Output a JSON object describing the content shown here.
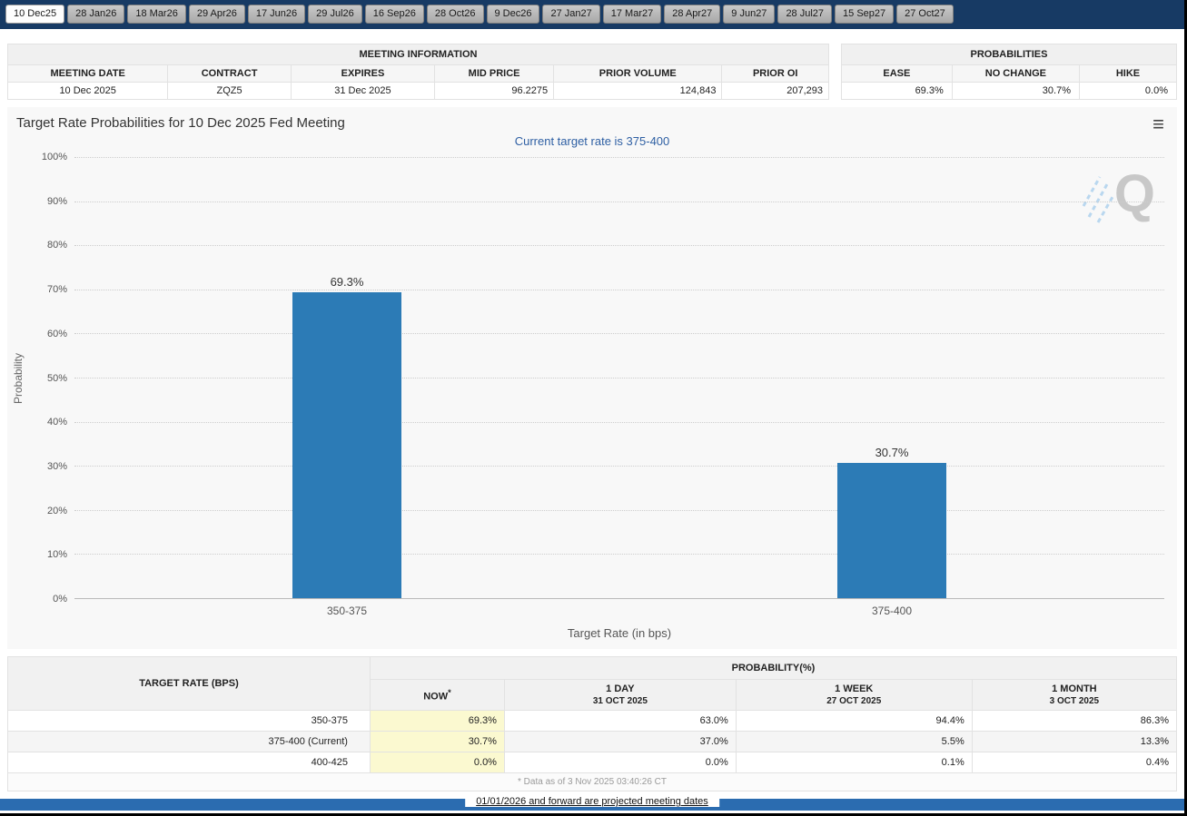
{
  "tabs": [
    {
      "label": "10 Dec25",
      "selected": true
    },
    {
      "label": "28 Jan26",
      "selected": false
    },
    {
      "label": "18 Mar26",
      "selected": false
    },
    {
      "label": "29 Apr26",
      "selected": false
    },
    {
      "label": "17 Jun26",
      "selected": false
    },
    {
      "label": "29 Jul26",
      "selected": false
    },
    {
      "label": "16 Sep26",
      "selected": false
    },
    {
      "label": "28 Oct26",
      "selected": false
    },
    {
      "label": "9 Dec26",
      "selected": false
    },
    {
      "label": "27 Jan27",
      "selected": false
    },
    {
      "label": "17 Mar27",
      "selected": false
    },
    {
      "label": "28 Apr27",
      "selected": false
    },
    {
      "label": "9 Jun27",
      "selected": false
    },
    {
      "label": "28 Jul27",
      "selected": false
    },
    {
      "label": "15 Sep27",
      "selected": false
    },
    {
      "label": "27 Oct27",
      "selected": false
    }
  ],
  "meeting_info": {
    "title": "MEETING INFORMATION",
    "columns": [
      "MEETING DATE",
      "CONTRACT",
      "EXPIRES",
      "MID PRICE",
      "PRIOR VOLUME",
      "PRIOR OI"
    ],
    "values": [
      "10 Dec 2025",
      "ZQZ5",
      "31 Dec 2025",
      "96.2275",
      "124,843",
      "207,293"
    ]
  },
  "probabilities": {
    "title": "PROBABILITIES",
    "columns": [
      "EASE",
      "NO CHANGE",
      "HIKE"
    ],
    "values": [
      "69.3%",
      "30.7%",
      "0.0%"
    ]
  },
  "chart": {
    "title": "Target Rate Probabilities for 10 Dec 2025 Fed Meeting",
    "subtitle": "Current target rate is 375-400",
    "menu_icon": "≡",
    "watermark": "Q"
  },
  "chart_data": {
    "type": "bar",
    "title": "Target Rate Probabilities for 10 Dec 2025 Fed Meeting",
    "subtitle": "Current target rate is 375-400",
    "categories": [
      "350-375",
      "375-400"
    ],
    "values": [
      69.3,
      30.7
    ],
    "bar_labels": [
      "69.3%",
      "30.7%"
    ],
    "xlabel": "Target Rate (in bps)",
    "ylabel": "Probability",
    "ylim": [
      0,
      100
    ],
    "ytick_step": 10,
    "ytick_suffix": "%",
    "grid": "horizontal dotted",
    "legend": "none",
    "bar_color": "#2c7bb6"
  },
  "history_table": {
    "rate_header": "TARGET RATE (BPS)",
    "group_header": "PROBABILITY(%)",
    "columns": [
      {
        "line1": "NOW",
        "sup": "*",
        "line2": ""
      },
      {
        "line1": "1 DAY",
        "sup": "",
        "line2": "31 OCT 2025"
      },
      {
        "line1": "1 WEEK",
        "sup": "",
        "line2": "27 OCT 2025"
      },
      {
        "line1": "1 MONTH",
        "sup": "",
        "line2": "3 OCT 2025"
      }
    ],
    "rows": [
      {
        "rate": "350-375",
        "values": [
          "69.3%",
          "63.0%",
          "94.4%",
          "86.3%"
        ]
      },
      {
        "rate": "375-400 (Current)",
        "values": [
          "30.7%",
          "37.0%",
          "5.5%",
          "13.3%"
        ]
      },
      {
        "rate": "400-425",
        "values": [
          "0.0%",
          "0.0%",
          "0.1%",
          "0.4%"
        ]
      }
    ],
    "footnote": "* Data as of 3 Nov 2025 03:40:26 CT"
  },
  "footer": {
    "note": "01/01/2026 and forward are projected meeting dates"
  },
  "colors": {
    "topbar": "#173a64",
    "bar": "#2c7bb6",
    "subtitle": "#2e5fa3",
    "now_highlight": "#fbf9d0",
    "footer_bar": "#2b6cb0"
  }
}
